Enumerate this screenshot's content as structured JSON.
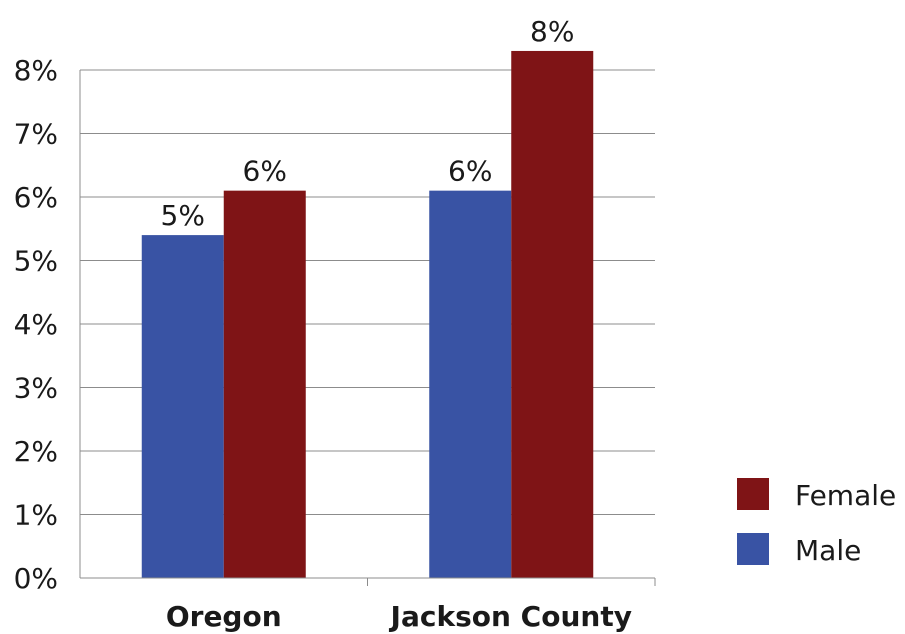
{
  "chart_data": {
    "type": "bar",
    "title": "",
    "xlabel": "",
    "ylabel": "",
    "categories": [
      "Oregon",
      "Jackson County"
    ],
    "series": [
      {
        "name": "Male",
        "values": [
          5.4,
          6.1
        ],
        "labels": [
          "5%",
          "6%"
        ],
        "color": "#3953a4"
      },
      {
        "name": "Female",
        "values": [
          6.1,
          8.3
        ],
        "labels": [
          "6%",
          "8%"
        ],
        "color": "#7f1416"
      }
    ],
    "ylim": [
      0,
      8
    ],
    "yticks": [
      0,
      1,
      2,
      3,
      4,
      5,
      6,
      7,
      8
    ],
    "ytick_labels": [
      "0%",
      "1%",
      "2%",
      "3%",
      "4%",
      "5%",
      "6%",
      "7%",
      "8%"
    ],
    "grid": true,
    "legend": {
      "position": "right",
      "order": [
        "Female",
        "Male"
      ]
    }
  }
}
